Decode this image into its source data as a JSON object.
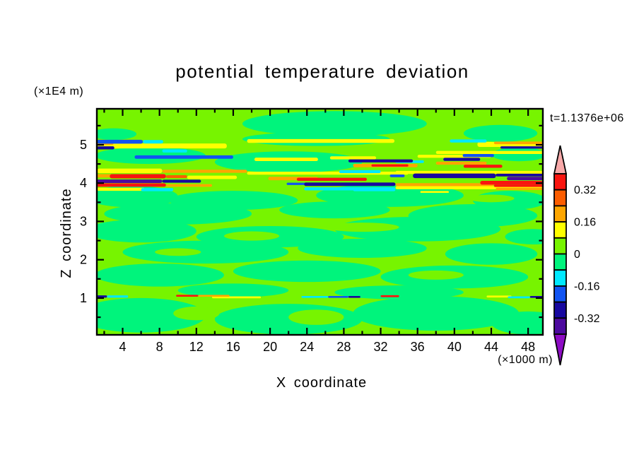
{
  "chart_data": {
    "type": "filled_contour",
    "title": "potential temperature deviation",
    "time_label": "t=1.1376e+06",
    "x_axis": {
      "label": "X coordinate",
      "units": "(×1000 m)",
      "major_ticks": [
        4,
        8,
        12,
        16,
        20,
        24,
        28,
        32,
        36,
        40,
        44,
        48
      ],
      "minor_ticks": [
        2,
        6,
        10,
        14,
        18,
        22,
        26,
        30,
        34,
        38,
        42,
        46
      ],
      "range": [
        1.2,
        49.6
      ]
    },
    "z_axis": {
      "label": "Z coordinate",
      "units": "(×1E4 m)",
      "major_ticks": [
        1,
        2,
        3,
        4,
        5
      ],
      "minor_ticks": [
        0.5,
        1.5,
        2.5,
        3.5,
        4.5,
        5.5
      ],
      "range": [
        0.04,
        5.94
      ]
    },
    "colorbar": {
      "levels": [
        0.4,
        0.32,
        0.24,
        0.16,
        0.08,
        0,
        -0.08,
        -0.16,
        -0.24,
        -0.32,
        -0.4
      ],
      "tick_labels": [
        "0.32",
        "0.16",
        "0",
        "-0.16",
        "-0.32"
      ],
      "labeled_boundary_indices": [
        1,
        3,
        5,
        7,
        9
      ],
      "colors": [
        "#f9150f",
        "#fc5d00",
        "#fea600",
        "#ffff00",
        "#77f400",
        "#00f47c",
        "#00e9ff",
        "#1154f2",
        "#17089f",
        "#4c0a9e"
      ],
      "over_color": "#f8a9a9",
      "under_color": "#8d0cc4"
    },
    "palette": {
      "K": "#f8a9a9",
      "R": "#f9150f",
      "OR": "#fc5d00",
      "O": "#fea600",
      "Y": "#ffff00",
      "L": "#77f400",
      "G": "#00f47c",
      "C": "#00e9ff",
      "B": "#1154f2",
      "N": "#17089f",
      "I": "#4c0a9e",
      "P": "#8d0cc4"
    },
    "contour_interval": 0.08,
    "field": {
      "background_key": "L",
      "blob_key": "G",
      "hole_key": "L",
      "blobs": [
        [
          27,
          5.55,
          10,
          0.33
        ],
        [
          45,
          5.3,
          4,
          0.22
        ],
        [
          3,
          5.28,
          2.5,
          0.15
        ],
        [
          25,
          5.15,
          8,
          0.18
        ],
        [
          7,
          4.72,
          6,
          0.22
        ],
        [
          22,
          4.55,
          8,
          0.28
        ],
        [
          47,
          4.75,
          3,
          0.18
        ],
        [
          5,
          3.65,
          5,
          0.28
        ],
        [
          16,
          3.55,
          7,
          0.25
        ],
        [
          33,
          3.68,
          8,
          0.3
        ],
        [
          46,
          3.55,
          4,
          0.25
        ],
        [
          10,
          3.2,
          8,
          0.28
        ],
        [
          27,
          3.3,
          6,
          0.22
        ],
        [
          42,
          3.15,
          7,
          0.3
        ],
        [
          6,
          2.75,
          6,
          0.3
        ],
        [
          20,
          2.6,
          8,
          0.28
        ],
        [
          36,
          2.8,
          9,
          0.32
        ],
        [
          48.5,
          2.6,
          3,
          0.2
        ],
        [
          13,
          2.2,
          9,
          0.3
        ],
        [
          30,
          2.3,
          7,
          0.25
        ],
        [
          44,
          2.15,
          5,
          0.28
        ],
        [
          8,
          1.6,
          7,
          0.3
        ],
        [
          24,
          1.7,
          8,
          0.28
        ],
        [
          40,
          1.55,
          8,
          0.3
        ],
        [
          16,
          1.2,
          6,
          0.18
        ],
        [
          34,
          1.15,
          7,
          0.18
        ],
        [
          6,
          0.55,
          7,
          0.45
        ],
        [
          22,
          0.45,
          8,
          0.4
        ],
        [
          38,
          0.6,
          9,
          0.45
        ],
        [
          48,
          0.35,
          4,
          0.3
        ]
      ],
      "holes": [
        [
          18,
          2.62,
          3,
          0.12
        ],
        [
          38,
          1.6,
          3,
          0.12
        ],
        [
          10,
          2.2,
          2.5,
          0.1
        ],
        [
          30,
          2.85,
          4,
          0.12
        ],
        [
          44,
          3.6,
          2.5,
          0.1
        ],
        [
          25,
          0.5,
          3,
          0.2
        ],
        [
          12,
          0.6,
          2.5,
          0.18
        ]
      ],
      "streaks": [
        [
          1.2,
          6.2,
          5.08,
          0.1,
          "B"
        ],
        [
          6.2,
          8.4,
          5.08,
          0.09,
          "C"
        ],
        [
          1.2,
          15.3,
          4.97,
          0.13,
          "Y"
        ],
        [
          1.2,
          3.0,
          5.03,
          0.07,
          "O"
        ],
        [
          1.2,
          3.1,
          4.92,
          0.08,
          "N"
        ],
        [
          8.3,
          11.0,
          4.84,
          0.08,
          "C"
        ],
        [
          17.5,
          33.5,
          5.1,
          0.1,
          "Y"
        ],
        [
          39.5,
          43.5,
          5.1,
          0.08,
          "C"
        ],
        [
          42.5,
          49.6,
          5.01,
          0.13,
          "Y"
        ],
        [
          44.3,
          49.6,
          5.05,
          0.07,
          "O"
        ],
        [
          45.0,
          49.6,
          4.93,
          0.06,
          "N"
        ],
        [
          38.0,
          49.6,
          4.8,
          0.08,
          "Y"
        ],
        [
          40.9,
          44.3,
          4.72,
          0.08,
          "B"
        ],
        [
          5.3,
          16.0,
          4.68,
          0.09,
          "B"
        ],
        [
          18.3,
          25.2,
          4.62,
          0.09,
          "Y"
        ],
        [
          26.5,
          31.5,
          4.66,
          0.08,
          "Y"
        ],
        [
          28.5,
          35.5,
          4.58,
          0.08,
          "N"
        ],
        [
          33.6,
          36.7,
          4.56,
          0.07,
          "C"
        ],
        [
          29.0,
          36.0,
          4.46,
          0.09,
          "O"
        ],
        [
          31.0,
          35.0,
          4.46,
          0.06,
          "R"
        ],
        [
          27.5,
          32.0,
          4.3,
          0.08,
          "C"
        ],
        [
          36.0,
          44.0,
          4.7,
          0.08,
          "Y"
        ],
        [
          38.8,
          42.8,
          4.62,
          0.08,
          "N"
        ],
        [
          38.0,
          43.5,
          4.52,
          0.08,
          "O"
        ],
        [
          41.0,
          45.2,
          4.44,
          0.08,
          "R"
        ],
        [
          1.2,
          8.3,
          4.32,
          0.12,
          "Y"
        ],
        [
          8.3,
          17.5,
          4.31,
          0.08,
          "O"
        ],
        [
          1.2,
          3.0,
          4.19,
          0.09,
          "O"
        ],
        [
          2.6,
          8.7,
          4.18,
          0.11,
          "R"
        ],
        [
          8.7,
          11.0,
          4.17,
          0.08,
          "OR"
        ],
        [
          11.0,
          16.4,
          4.15,
          0.09,
          "Y"
        ],
        [
          1.2,
          8.3,
          4.05,
          0.09,
          "I"
        ],
        [
          8.3,
          12.5,
          4.05,
          0.08,
          "N"
        ],
        [
          1.2,
          8.7,
          3.95,
          0.09,
          "R"
        ],
        [
          8.7,
          13.7,
          3.94,
          0.07,
          "O"
        ],
        [
          1.2,
          6.4,
          3.84,
          0.08,
          "Y"
        ],
        [
          6.0,
          9.5,
          3.83,
          0.08,
          "C"
        ],
        [
          17.5,
          35.0,
          4.26,
          0.08,
          "Y"
        ],
        [
          19.8,
          25.2,
          4.12,
          0.09,
          "O"
        ],
        [
          22.9,
          30.5,
          4.1,
          0.08,
          "R"
        ],
        [
          23.7,
          33.6,
          3.97,
          0.09,
          "N"
        ],
        [
          21.8,
          24.3,
          3.98,
          0.06,
          "B"
        ],
        [
          23.7,
          33.6,
          3.85,
          0.08,
          "C"
        ],
        [
          33.6,
          49.6,
          4.28,
          0.08,
          "Y"
        ],
        [
          33.0,
          34.6,
          4.19,
          0.07,
          "B"
        ],
        [
          35.5,
          44.5,
          4.19,
          0.12,
          "N"
        ],
        [
          44.5,
          49.6,
          4.21,
          0.07,
          "N"
        ],
        [
          45.7,
          49.6,
          4.12,
          0.09,
          "I"
        ],
        [
          42.8,
          49.6,
          4.01,
          0.1,
          "R"
        ],
        [
          33.6,
          44.3,
          3.96,
          0.08,
          "O"
        ],
        [
          33.6,
          49.6,
          3.88,
          0.08,
          "Y"
        ],
        [
          44.3,
          49.6,
          3.93,
          0.06,
          "R"
        ],
        [
          29.0,
          33.6,
          3.83,
          0.08,
          "C"
        ],
        [
          44.5,
          49.6,
          3.85,
          0.06,
          "O"
        ],
        [
          36.3,
          39.4,
          3.77,
          0.05,
          "Y"
        ],
        [
          1.2,
          2.3,
          1.04,
          0.06,
          "N"
        ],
        [
          2.3,
          4.6,
          1.04,
          0.06,
          "C"
        ],
        [
          9.8,
          12.2,
          1.06,
          0.05,
          "R"
        ],
        [
          12.2,
          15.6,
          1.06,
          0.05,
          "O"
        ],
        [
          13.7,
          19.0,
          1.02,
          0.05,
          "Y"
        ],
        [
          23.4,
          26.3,
          1.03,
          0.05,
          "C"
        ],
        [
          26.3,
          28.5,
          1.03,
          0.05,
          "B"
        ],
        [
          28.5,
          29.8,
          1.03,
          0.05,
          "N"
        ],
        [
          32.0,
          34.0,
          1.05,
          0.05,
          "R"
        ],
        [
          43.5,
          46.2,
          1.04,
          0.05,
          "Y"
        ],
        [
          45.8,
          48.2,
          1.02,
          0.05,
          "C"
        ],
        [
          48.2,
          49.6,
          1.03,
          0.05,
          "N"
        ]
      ]
    }
  }
}
